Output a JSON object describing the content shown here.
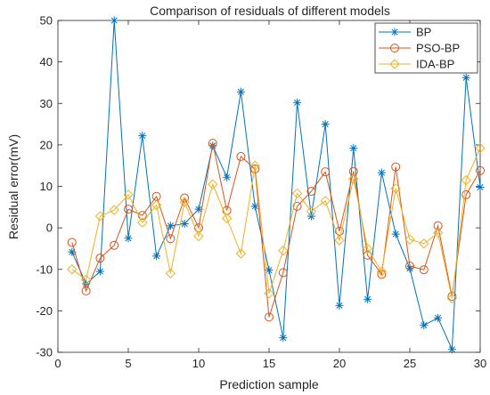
{
  "chart_data": {
    "type": "line",
    "title": "Comparison of residuals of different models",
    "xlabel": "Prediction sample",
    "ylabel": "Residual error(mV)",
    "xlim": [
      0,
      30
    ],
    "ylim": [
      -30,
      50
    ],
    "xticks": [
      0,
      5,
      10,
      15,
      20,
      25,
      30
    ],
    "yticks": [
      -30,
      -20,
      -10,
      0,
      10,
      20,
      30,
      40,
      50
    ],
    "grid": false,
    "legend_position": "top-right",
    "x": [
      1,
      2,
      3,
      4,
      5,
      6,
      7,
      8,
      9,
      10,
      11,
      12,
      13,
      14,
      15,
      16,
      17,
      18,
      19,
      20,
      21,
      22,
      23,
      24,
      25,
      26,
      27,
      28,
      29,
      30
    ],
    "series": [
      {
        "name": "BP",
        "color": "#0072BD",
        "marker": "asterisk",
        "values": [
          -5.8,
          -13.5,
          -10.5,
          50,
          -2.5,
          22.2,
          -6.8,
          0.5,
          1,
          4.5,
          19.8,
          12.2,
          32.8,
          5.2,
          -10.2,
          -26.5,
          30.2,
          2.8,
          25,
          -18.7,
          19.2,
          -17.2,
          13.3,
          -1.5,
          -9.8,
          -23.5,
          -21.7,
          -29.3,
          36.2,
          9.8
        ]
      },
      {
        "name": "PSO-BP",
        "color": "#D95319",
        "marker": "circle",
        "values": [
          -3.5,
          -15.2,
          -7.3,
          -4.2,
          4.5,
          3,
          7.6,
          -2.6,
          7.2,
          0,
          20.4,
          4.2,
          17.2,
          14.2,
          -21.5,
          -10.8,
          5.2,
          8.8,
          13.5,
          -0.8,
          13.6,
          -6.6,
          -11.2,
          14.7,
          -9.2,
          -10.1,
          0.5,
          -16.5,
          8,
          13.8
        ]
      },
      {
        "name": "IDA-BP",
        "color": "#EDB120",
        "marker": "diamond",
        "values": [
          -10,
          -12.5,
          2.8,
          4.3,
          8,
          1.3,
          5.5,
          -11,
          6.2,
          -2,
          10.5,
          2.3,
          -6.2,
          15,
          -15.8,
          -5.5,
          8.3,
          4,
          6.5,
          -3,
          11.8,
          -5,
          -10.5,
          9.5,
          -2.8,
          -3.8,
          -1.2,
          -17,
          11.5,
          19.2
        ]
      }
    ]
  }
}
